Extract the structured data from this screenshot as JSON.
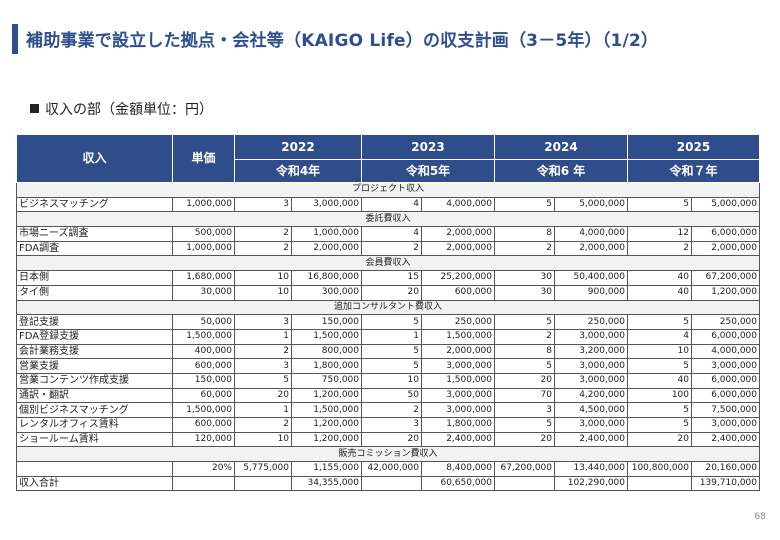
{
  "title": "補助事業で設立した拠点・会社等（KAIGO Life）の収支計画（3－5年）（1/2）",
  "subtitle": "収入の部（金額単位：円）",
  "header": {
    "income": "収入",
    "unit_price": "単価",
    "years": [
      {
        "year": "2022",
        "era": "令和4年"
      },
      {
        "year": "2023",
        "era": "令和5年"
      },
      {
        "year": "2024",
        "era": "令和6 年"
      },
      {
        "year": "2025",
        "era": "令和７年"
      }
    ]
  },
  "sections": [
    {
      "title": "プロジェクト収入",
      "rows": [
        {
          "name": "ビジネスマッチング",
          "price": "1,000,000",
          "cells": [
            "3",
            "3,000,000",
            "4",
            "4,000,000",
            "5",
            "5,000,000",
            "5",
            "5,000,000"
          ]
        }
      ]
    },
    {
      "title": "委託費収入",
      "rows": [
        {
          "name": "市場ニーズ調査",
          "price": "500,000",
          "cells": [
            "2",
            "1,000,000",
            "4",
            "2,000,000",
            "8",
            "4,000,000",
            "12",
            "6,000,000"
          ]
        },
        {
          "name": "FDA調査",
          "price": "1,000,000",
          "cells": [
            "2",
            "2,000,000",
            "2",
            "2,000,000",
            "2",
            "2,000,000",
            "2",
            "2,000,000"
          ]
        }
      ]
    },
    {
      "title": "会員費収入",
      "rows": [
        {
          "name": "日本側",
          "price": "1,680,000",
          "cells": [
            "10",
            "16,800,000",
            "15",
            "25,200,000",
            "30",
            "50,400,000",
            "40",
            "67,200,000"
          ]
        },
        {
          "name": "タイ側",
          "price": "30,000",
          "cells": [
            "10",
            "300,000",
            "20",
            "600,000",
            "30",
            "900,000",
            "40",
            "1,200,000"
          ]
        }
      ]
    },
    {
      "title": "追加コンサルタント費収入",
      "rows": [
        {
          "name": "登記支援",
          "price": "50,000",
          "cells": [
            "3",
            "150,000",
            "5",
            "250,000",
            "5",
            "250,000",
            "5",
            "250,000"
          ]
        },
        {
          "name": "FDA登録支援",
          "price": "1,500,000",
          "cells": [
            "1",
            "1,500,000",
            "1",
            "1,500,000",
            "2",
            "3,000,000",
            "4",
            "6,000,000"
          ]
        },
        {
          "name": "会計業務支援",
          "price": "400,000",
          "cells": [
            "2",
            "800,000",
            "5",
            "2,000,000",
            "8",
            "3,200,000",
            "10",
            "4,000,000"
          ]
        },
        {
          "name": "営業支援",
          "price": "600,000",
          "cells": [
            "3",
            "1,800,000",
            "5",
            "3,000,000",
            "5",
            "3,000,000",
            "5",
            "3,000,000"
          ]
        },
        {
          "name": "営業コンテンツ作成支援",
          "price": "150,000",
          "cells": [
            "5",
            "750,000",
            "10",
            "1,500,000",
            "20",
            "3,000,000",
            "40",
            "6,000,000"
          ]
        },
        {
          "name": "通訳・翻訳",
          "price": "60,000",
          "cells": [
            "20",
            "1,200,000",
            "50",
            "3,000,000",
            "70",
            "4,200,000",
            "100",
            "6,000,000"
          ]
        },
        {
          "name": "個別ビジネスマッチング",
          "price": "1,500,000",
          "cells": [
            "1",
            "1,500,000",
            "2",
            "3,000,000",
            "3",
            "4,500,000",
            "5",
            "7,500,000"
          ]
        },
        {
          "name": "レンタルオフィス賃料",
          "price": "600,000",
          "cells": [
            "2",
            "1,200,000",
            "3",
            "1,800,000",
            "5",
            "3,000,000",
            "5",
            "3,000,000"
          ]
        },
        {
          "name": "ショールーム賃料",
          "price": "120,000",
          "cells": [
            "10",
            "1,200,000",
            "20",
            "2,400,000",
            "20",
            "2,400,000",
            "20",
            "2,400,000"
          ]
        }
      ]
    },
    {
      "title": "販売コミッション費収入",
      "rows": [
        {
          "name": "",
          "price": "20%",
          "cells": [
            "5,775,000",
            "1,155,000",
            "42,000,000",
            "8,400,000",
            "67,200,000",
            "13,440,000",
            "100,800,000",
            "20,160,000"
          ]
        }
      ]
    }
  ],
  "total": {
    "name": "収入合計",
    "price": "",
    "cells": [
      "",
      "34,355,000",
      "",
      "60,650,000",
      "",
      "102,290,000",
      "",
      "139,710,000"
    ]
  },
  "page_number": "68"
}
